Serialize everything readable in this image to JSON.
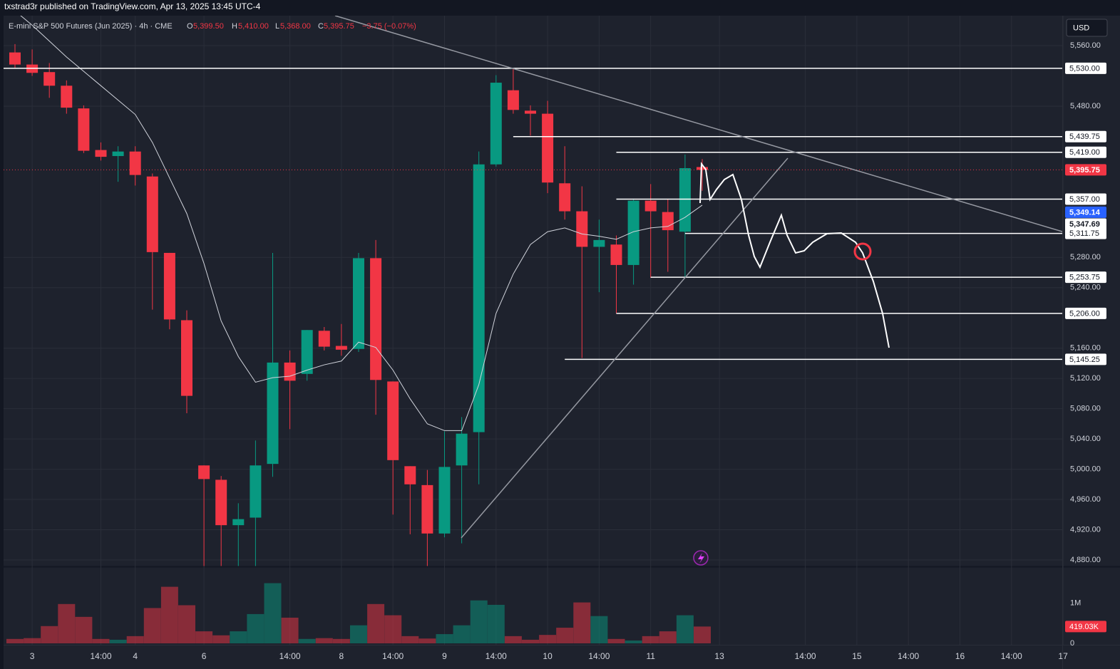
{
  "header": {
    "publisher": "txstrad3r published on TradingView.com, Apr 13, 2025 13:45 UTC-4"
  },
  "chart_data": {
    "type": "candlestick",
    "title": "E-mini S&P 500 Futures (Jun 2025) · 4h · CME",
    "legend_values": [
      {
        "key": "O",
        "text": "5,399.50"
      },
      {
        "key": "H",
        "text": "5,410.00"
      },
      {
        "key": "L",
        "text": "5,368.00"
      },
      {
        "key": "C",
        "text": "5,395.75"
      }
    ],
    "change": "−3.75 (−0.07%)",
    "currency": "USD",
    "categories": [
      null,
      "3",
      null,
      null,
      null,
      "14:00",
      null,
      "4",
      null,
      null,
      null,
      "6",
      null,
      null,
      null,
      null,
      "14:00",
      null,
      null,
      "8",
      null,
      null,
      "14:00",
      null,
      null,
      "9",
      null,
      null,
      "14:00",
      null,
      null,
      "10",
      null,
      null,
      "14:00",
      null,
      null,
      "11",
      null,
      null,
      null,
      "13",
      null,
      null,
      null,
      null,
      "14:00",
      null,
      null,
      "15",
      null,
      null,
      "14:00",
      null,
      null,
      "16",
      null,
      null,
      "14:00",
      null,
      null,
      "17"
    ],
    "open": [
      5551,
      5535,
      5525,
      5507,
      5477,
      5422,
      5414,
      5420,
      5387,
      5286,
      5197,
      5005,
      4986,
      4926,
      4936,
      5007,
      5141,
      5126,
      5183,
      5163,
      5159,
      5279,
      5116,
      5004,
      4979,
      4915,
      5005,
      5049,
      5403,
      5501,
      5474,
      5470,
      5378,
      5341,
      5294,
      5297,
      5270,
      5355,
      5340,
      5314,
      5399.5,
      null,
      null,
      null,
      null,
      null,
      null,
      null,
      null,
      null,
      null,
      null,
      null,
      null,
      null,
      null,
      null,
      null,
      null,
      null,
      null,
      null
    ],
    "high": [
      5562,
      5555,
      5537,
      5514,
      5481,
      5432,
      5427,
      5427,
      5391,
      5286,
      5210,
      5005,
      4991,
      4955,
      5038,
      5286,
      5157,
      5184,
      5188,
      5192,
      5286,
      5303,
      5116,
      5004,
      4999,
      5050,
      5069,
      5420,
      5521,
      5529,
      5481,
      5487,
      5427,
      5374,
      5330,
      5309,
      5357,
      5377,
      5357,
      5416,
      5410,
      null,
      null,
      null,
      null,
      null,
      null,
      null,
      null,
      null,
      null,
      null,
      null,
      null,
      null,
      null,
      null,
      null,
      null,
      null,
      null,
      null
    ],
    "low": [
      5530,
      5520,
      5491,
      5470,
      5418,
      5408,
      5380,
      5375,
      5211,
      5185,
      5074,
      4872,
      4872,
      4872,
      4872,
      4990,
      5053,
      5117,
      5157,
      5150,
      5155,
      5072,
      4940,
      4914,
      4872,
      4910,
      4902,
      4980,
      5400,
      5470,
      5441,
      5365,
      5330,
      5147,
      5234,
      5206,
      5244,
      5253,
      5261,
      5253,
      5368,
      null,
      null,
      null,
      null,
      null,
      null,
      null,
      null,
      null,
      null,
      null,
      null,
      null,
      null,
      null,
      null,
      null,
      null,
      null,
      null,
      null
    ],
    "close": [
      5535,
      5524,
      5507,
      5478,
      5421,
      5413,
      5420,
      5389,
      5287,
      5198,
      5097,
      4987,
      4926,
      4934,
      5005,
      5141,
      5117,
      5184,
      5162,
      5158,
      5279,
      5118,
      5012,
      4980,
      4915,
      5003,
      5047,
      5403,
      5511,
      5475,
      5470,
      5379,
      5341,
      5294,
      5303,
      5270,
      5355,
      5341,
      5316,
      5398,
      5395.75,
      null,
      null,
      null,
      null,
      null,
      null,
      null,
      null,
      null,
      null,
      null,
      null,
      null,
      null,
      null,
      null,
      null,
      null,
      null,
      null,
      null
    ],
    "up_color": "#089981",
    "down_color": "#f23645",
    "moving_average": {
      "color": "#d1d4dc",
      "values": [
        5606,
        5587,
        5566,
        5545,
        5526,
        5507,
        5488,
        5469,
        5432,
        5385,
        5338,
        5272,
        5196,
        5149,
        5115,
        5121,
        5123,
        5131,
        5138,
        5143,
        5168,
        5161,
        5131,
        5093,
        5060,
        5051,
        5051,
        5112,
        5206,
        5258,
        5297,
        5314,
        5319,
        5311,
        5308,
        5304,
        5314,
        5319,
        5321,
        5333,
        5349.14,
        null,
        null,
        null,
        null,
        null,
        null,
        null,
        null,
        null,
        null,
        null,
        null,
        null,
        null,
        null,
        null,
        null,
        null,
        null,
        null,
        null
      ]
    },
    "ylim": [
      4871.5,
      5599.6
    ],
    "yticks": [
      {
        "value": 5560,
        "label": "5,560.00"
      },
      {
        "value": 5480,
        "label": "5,480.00"
      },
      {
        "value": 5280,
        "label": "5,280.00"
      },
      {
        "value": 5240,
        "label": "5,240.00"
      },
      {
        "value": 5160,
        "label": "5,160.00"
      },
      {
        "value": 5120,
        "label": "5,120.00"
      },
      {
        "value": 5080,
        "label": "5,080.00"
      },
      {
        "value": 5040,
        "label": "5,040.00"
      },
      {
        "value": 5000,
        "label": "5,000.00"
      },
      {
        "value": 4960,
        "label": "4,960.00"
      },
      {
        "value": 4920,
        "label": "4,920.00"
      },
      {
        "value": 4880,
        "label": "4,880.00"
      }
    ],
    "grid": true,
    "price_lines": [
      {
        "value": 5530,
        "label": "5,530.00"
      },
      {
        "value": 5439.75,
        "label": "5,439.75"
      },
      {
        "value": 5419,
        "label": "5,419.00"
      },
      {
        "value": 5357,
        "label": "5,357.00"
      },
      {
        "value": 5311.75,
        "label": "5,311.75"
      },
      {
        "value": 5253.75,
        "label": "5,253.75"
      },
      {
        "value": 5206,
        "label": "5,206.00"
      },
      {
        "value": 5145.25,
        "label": "5,145.25"
      }
    ],
    "tags": [
      {
        "value": 5395.75,
        "label": "5,395.75",
        "color": "#f23645"
      },
      {
        "value": 5349.14,
        "label": "5,349.14",
        "color": "#2962ff"
      },
      {
        "value": 5347.69,
        "label": "5,347.69",
        "color": "#ffffff"
      }
    ],
    "volume": {
      "values": [
        110000,
        130000,
        430000,
        980000,
        660000,
        110000,
        90000,
        180000,
        880000,
        1410000,
        950000,
        300000,
        200000,
        300000,
        730000,
        1500000,
        640000,
        110000,
        130000,
        110000,
        450000,
        980000,
        700000,
        180000,
        120000,
        230000,
        450000,
        1070000,
        960000,
        180000,
        90000,
        210000,
        390000,
        1020000,
        680000,
        110000,
        70000,
        180000,
        300000,
        700000,
        419030,
        null,
        null,
        null,
        null,
        null,
        null,
        null,
        null,
        null,
        null,
        null,
        null,
        null,
        null,
        null,
        null,
        null,
        null,
        null,
        null,
        null
      ],
      "ylim": [
        0,
        1900000
      ],
      "yticks": [
        {
          "value": 1000000,
          "label": "1M"
        },
        0
      ],
      "last_label": {
        "value": 419030,
        "label": "419.03K"
      }
    }
  }
}
